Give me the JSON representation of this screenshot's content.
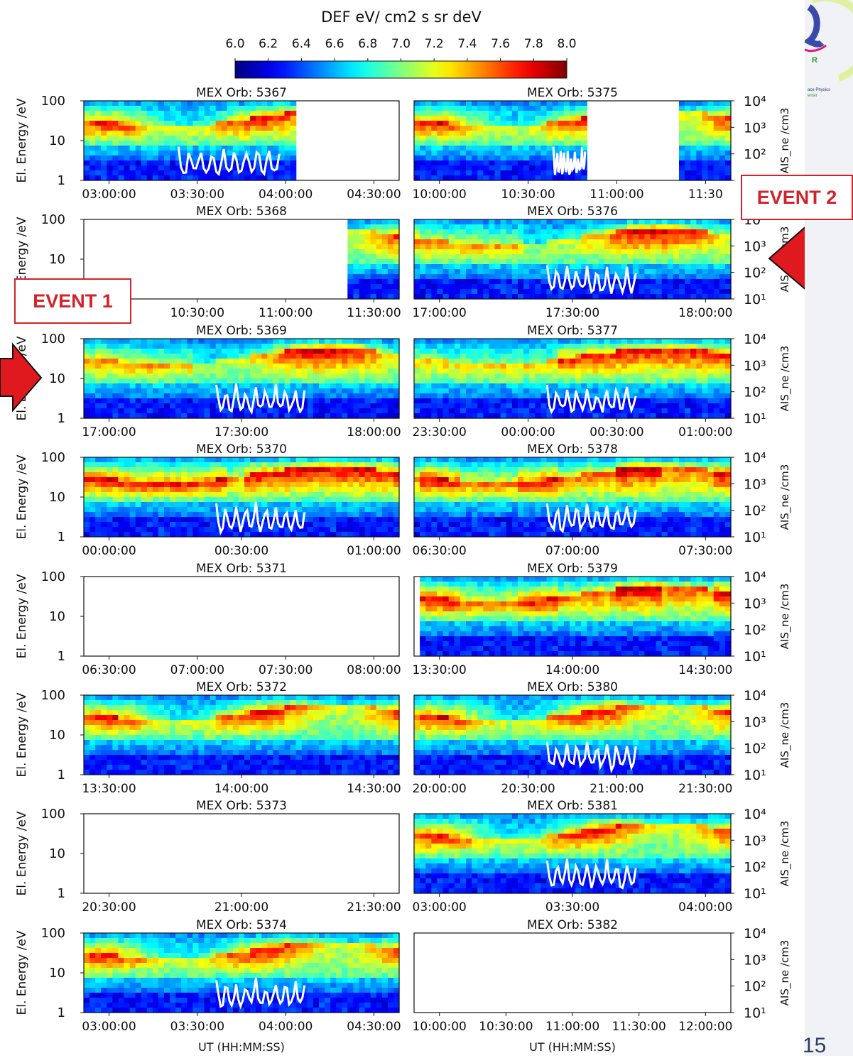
{
  "slide": {
    "event1_label": "EVENT 1",
    "event2_label": "EVENT 2",
    "page_number": "15",
    "arrow_color": "#e0191f"
  },
  "chart_data": {
    "type": "heatmap",
    "colorbar": {
      "label": "DEF eV/ cm2 s sr deV",
      "range": [
        6.0,
        8.0
      ],
      "ticks": [
        "6.0",
        "6.2",
        "6.4",
        "6.6",
        "6.8",
        "7.0",
        "7.2",
        "7.4",
        "7.6",
        "7.8",
        "8.0"
      ],
      "colormap": "jet"
    },
    "y_left": {
      "label": "El. Energy /eV",
      "scale": "log",
      "range": [
        1,
        100
      ],
      "ticks": [
        "100",
        "10",
        "1"
      ]
    },
    "y_right": {
      "label": "AIS_ne /cm3",
      "scale": "log",
      "range": [
        10,
        10000
      ],
      "ticks": [
        "10⁴",
        "10³",
        "10²",
        "10¹"
      ]
    },
    "x_label": "UT (HH:MM:SS)",
    "panels": [
      {
        "title": "MEX Orb: 5367",
        "xticks": [
          "03:00:00",
          "03:30:00",
          "04:00:00",
          "04:30:00"
        ],
        "data_coverage": "03:00–04:02",
        "ne_trace": true
      },
      {
        "title": "MEX Orb: 5375",
        "xticks": [
          "10:00:00",
          "10:30:00",
          "11:00:00",
          "11:30"
        ],
        "data_coverage": "09:40–10:40, 11:13–11:30",
        "ne_trace": true
      },
      {
        "title": "MEX Orb: 5368",
        "xticks": [
          "0",
          "10:30:00",
          "11:00:00",
          "11:30:00"
        ],
        "data_coverage": "11:20–11:38",
        "ne_trace": false
      },
      {
        "title": "MEX Orb: 5376",
        "xticks": [
          "17:00:00",
          "17:30:00",
          "18:00:00"
        ],
        "data_coverage": "full",
        "ne_trace": true
      },
      {
        "title": "MEX Orb: 5369",
        "xticks": [
          "17:00:00",
          "17:30:00",
          "18:00:00"
        ],
        "data_coverage": "full",
        "ne_trace": true
      },
      {
        "title": "MEX Orb: 5377",
        "xticks": [
          "23:30:00",
          "00:00:00",
          "00:30:00",
          "01:00:00"
        ],
        "data_coverage": "full",
        "ne_trace": true
      },
      {
        "title": "MEX Orb: 5370",
        "xticks": [
          "00:00:00",
          "00:30:00",
          "01:00:00"
        ],
        "data_coverage": "full",
        "ne_trace": true
      },
      {
        "title": "MEX Orb: 5378",
        "xticks": [
          "06:30:00",
          "07:00:00",
          "07:30:00"
        ],
        "data_coverage": "full",
        "ne_trace": true
      },
      {
        "title": "MEX Orb: 5371",
        "xticks": [
          "06:30:00",
          "07:00:00",
          "07:30:00",
          "08:00:00"
        ],
        "data_coverage": "none",
        "ne_trace": false
      },
      {
        "title": "MEX Orb: 5379",
        "xticks": [
          "13:30:00",
          "14:00:00",
          "14:30:00"
        ],
        "data_coverage": "full",
        "ne_trace": false
      },
      {
        "title": "MEX Orb: 5372",
        "xticks": [
          "13:30:00",
          "14:00:00",
          "14:30:00"
        ],
        "data_coverage": "full",
        "ne_trace": false
      },
      {
        "title": "MEX Orb: 5380",
        "xticks": [
          "20:00:00",
          "20:30:00",
          "21:00:00",
          "21:30:00"
        ],
        "data_coverage": "full",
        "ne_trace": true
      },
      {
        "title": "MEX Orb: 5373",
        "xticks": [
          "20:30:00",
          "21:00:00",
          "21:30:00"
        ],
        "data_coverage": "none",
        "ne_trace": false
      },
      {
        "title": "MEX Orb: 5381",
        "xticks": [
          "03:00:00",
          "03:30:00",
          "04:00:00"
        ],
        "data_coverage": "full",
        "ne_trace": true
      },
      {
        "title": "MEX Orb: 5374",
        "xticks": [
          "03:00:00",
          "03:30:00",
          "04:00:00",
          "04:30:00"
        ],
        "data_coverage": "full",
        "ne_trace": true
      },
      {
        "title": "MEX Orb: 5382",
        "xticks": [
          "10:00:00",
          "10:30:00",
          "11:00:00",
          "11:30:00",
          "12:00:00"
        ],
        "data_coverage": "none",
        "ne_trace": false
      }
    ]
  }
}
